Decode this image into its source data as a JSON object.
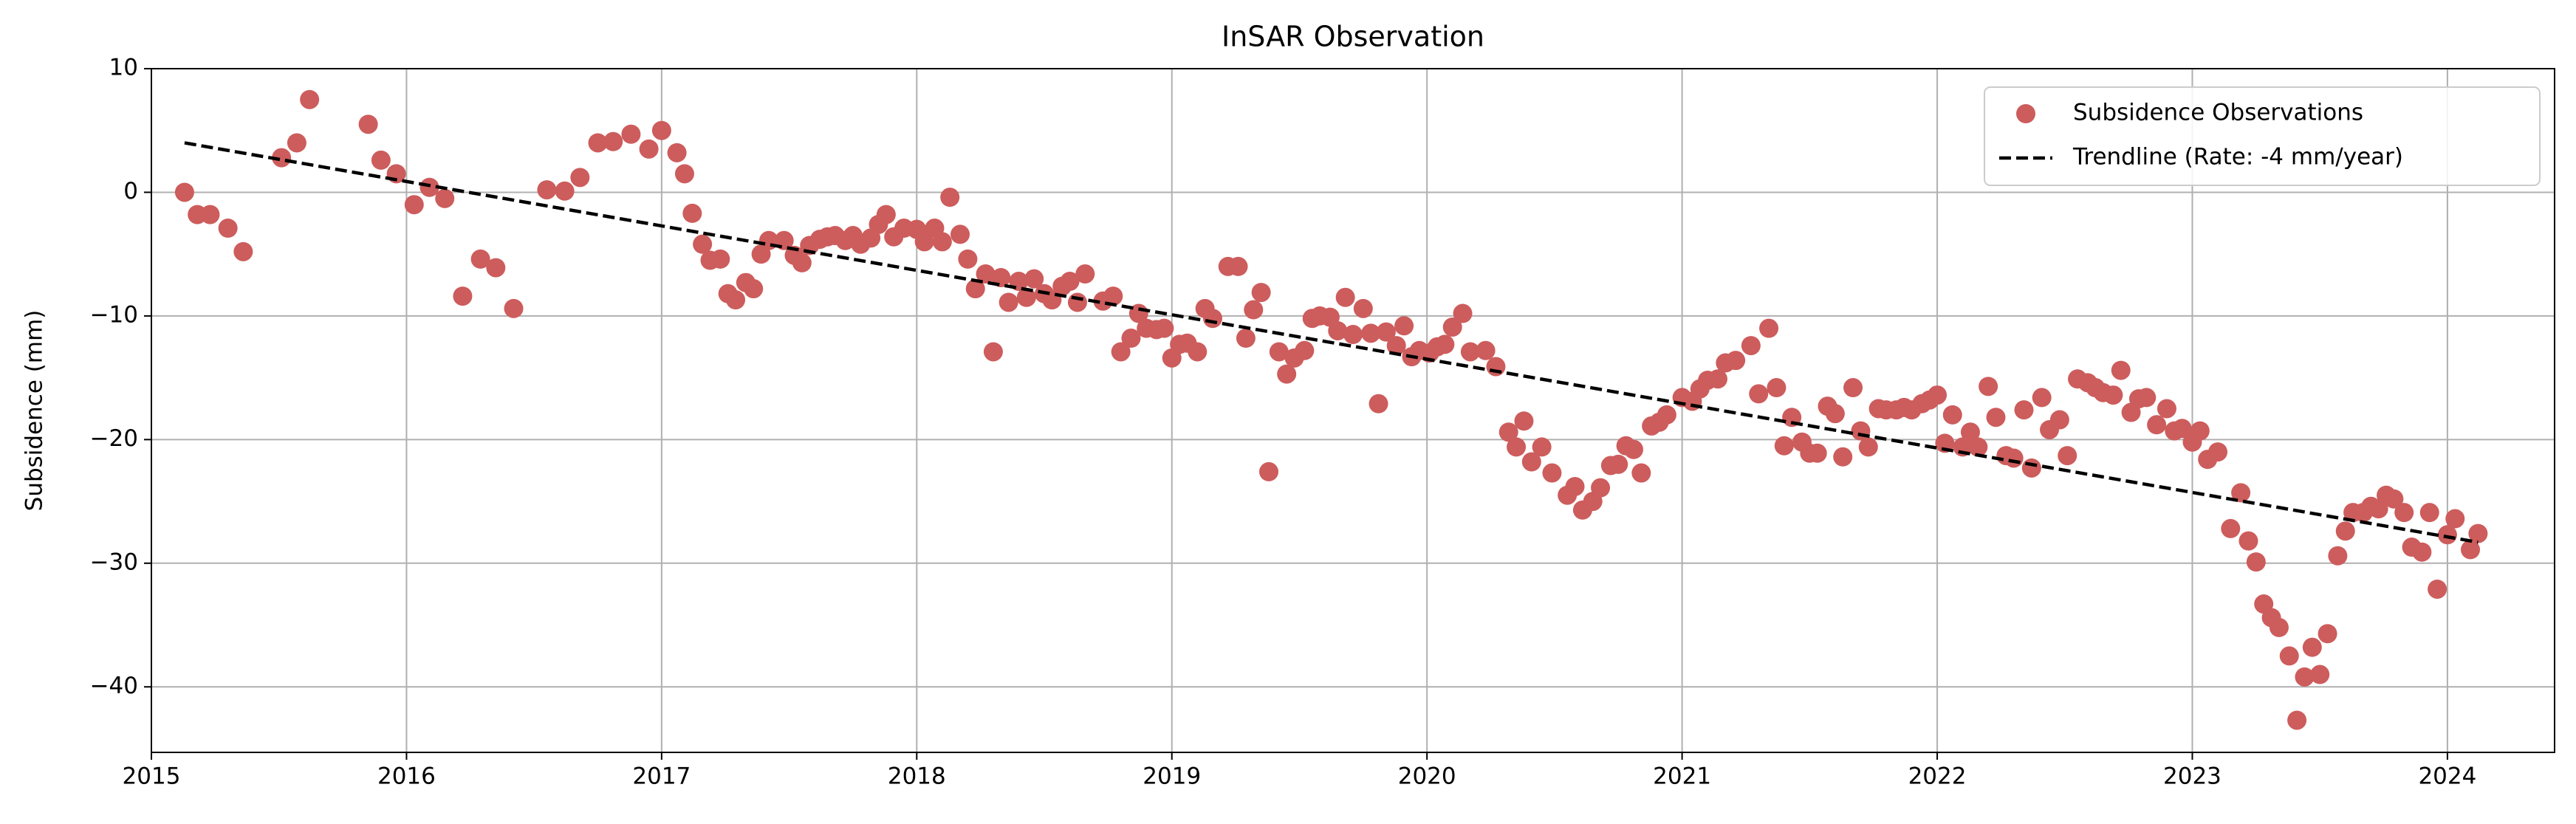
{
  "chart_data": {
    "type": "scatter",
    "title": "InSAR Observation",
    "ylabel": "Subsidence (mm)",
    "xlim": [
      2015,
      2024.42
    ],
    "ylim": [
      -45.3,
      10
    ],
    "xticks": [
      2015,
      2016,
      2017,
      2018,
      2019,
      2020,
      2021,
      2022,
      2023,
      2024
    ],
    "yticks": [
      {
        "value": -40,
        "label": "−40"
      },
      {
        "value": -30,
        "label": "−30"
      },
      {
        "value": -20,
        "label": "−20"
      },
      {
        "value": -10,
        "label": "−10"
      },
      0,
      10
    ],
    "grid": true,
    "legend": "upper right",
    "series": [
      {
        "name": "Subsidence Observations",
        "type": "scatter",
        "color": "#cd5c5c",
        "x": [
          2015.13,
          2015.18,
          2015.23,
          2015.3,
          2015.36,
          2015.51,
          2015.57,
          2015.62,
          2015.85,
          2015.9,
          2015.96,
          2016.03,
          2016.09,
          2016.15,
          2016.22,
          2016.29,
          2016.35,
          2016.42,
          2016.55,
          2016.62,
          2016.68,
          2016.75,
          2016.81,
          2016.88,
          2016.95,
          2017.0,
          2017.06,
          2017.09,
          2017.12,
          2017.16,
          2017.19,
          2017.23,
          2017.26,
          2017.29,
          2017.33,
          2017.36,
          2017.39,
          2017.42,
          2017.48,
          2017.52,
          2017.55,
          2017.58,
          2017.62,
          2017.65,
          2017.68,
          2017.72,
          2017.75,
          2017.78,
          2017.82,
          2017.85,
          2017.88,
          2017.91,
          2017.95,
          2018.0,
          2018.03,
          2018.07,
          2018.1,
          2018.13,
          2018.17,
          2018.2,
          2018.23,
          2018.27,
          2018.3,
          2018.33,
          2018.36,
          2018.4,
          2018.43,
          2018.46,
          2018.5,
          2018.53,
          2018.57,
          2018.6,
          2018.63,
          2018.66,
          2018.73,
          2018.77,
          2018.8,
          2018.84,
          2018.87,
          2018.9,
          2018.94,
          2018.97,
          2019.0,
          2019.03,
          2019.06,
          2019.1,
          2019.13,
          2019.16,
          2019.22,
          2019.26,
          2019.29,
          2019.32,
          2019.35,
          2019.38,
          2019.42,
          2019.45,
          2019.48,
          2019.52,
          2019.55,
          2019.58,
          2019.62,
          2019.65,
          2019.68,
          2019.71,
          2019.75,
          2019.78,
          2019.81,
          2019.84,
          2019.88,
          2019.91,
          2019.94,
          2019.97,
          2020.01,
          2020.04,
          2020.07,
          2020.1,
          2020.14,
          2020.17,
          2020.23,
          2020.27,
          2020.32,
          2020.35,
          2020.38,
          2020.41,
          2020.45,
          2020.49,
          2020.55,
          2020.58,
          2020.61,
          2020.65,
          2020.68,
          2020.72,
          2020.75,
          2020.78,
          2020.81,
          2020.84,
          2020.88,
          2020.91,
          2020.94,
          2021.0,
          2021.04,
          2021.07,
          2021.1,
          2021.14,
          2021.17,
          2021.21,
          2021.27,
          2021.3,
          2021.34,
          2021.37,
          2021.4,
          2021.43,
          2021.47,
          2021.5,
          2021.53,
          2021.57,
          2021.6,
          2021.63,
          2021.67,
          2021.7,
          2021.73,
          2021.77,
          2021.8,
          2021.84,
          2021.87,
          2021.9,
          2021.94,
          2021.97,
          2022.0,
          2022.03,
          2022.06,
          2022.1,
          2022.13,
          2022.16,
          2022.2,
          2022.23,
          2022.27,
          2022.3,
          2022.34,
          2022.37,
          2022.41,
          2022.44,
          2022.48,
          2022.51,
          2022.55,
          2022.59,
          2022.62,
          2022.65,
          2022.69,
          2022.72,
          2022.76,
          2022.79,
          2022.82,
          2022.86,
          2022.9,
          2022.93,
          2022.96,
          2023.0,
          2023.03,
          2023.06,
          2023.1,
          2023.15,
          2023.19,
          2023.22,
          2023.25,
          2023.28,
          2023.31,
          2023.34,
          2023.38,
          2023.41,
          2023.44,
          2023.47,
          2023.5,
          2023.53,
          2023.57,
          2023.6,
          2023.63,
          2023.67,
          2023.7,
          2023.73,
          2023.76,
          2023.79,
          2023.83,
          2023.86,
          2023.9,
          2023.93,
          2023.96,
          2024.0,
          2024.03,
          2024.09,
          2024.12
        ],
        "values": [
          0,
          -1.8,
          -1.8,
          -2.9,
          -4.8,
          2.8,
          4.0,
          7.5,
          5.5,
          2.6,
          1.5,
          -1.0,
          0.4,
          -0.5,
          -8.4,
          -5.4,
          -6.1,
          -9.4,
          0.2,
          0.1,
          1.2,
          4.0,
          4.1,
          4.7,
          3.5,
          5.0,
          3.2,
          1.5,
          -1.7,
          -4.2,
          -5.5,
          -5.4,
          -8.2,
          -8.7,
          -7.3,
          -7.8,
          -5.0,
          -3.9,
          -3.9,
          -5.1,
          -5.7,
          -4.3,
          -3.8,
          -3.6,
          -3.5,
          -3.9,
          -3.5,
          -4.2,
          -3.7,
          -2.6,
          -1.8,
          -3.6,
          -2.9,
          -3.0,
          -4.0,
          -2.9,
          -4.0,
          -0.4,
          -3.4,
          -5.4,
          -7.8,
          -6.6,
          -12.9,
          -6.9,
          -8.9,
          -7.2,
          -8.5,
          -7.0,
          -8.2,
          -8.7,
          -7.6,
          -7.2,
          -8.9,
          -6.6,
          -8.8,
          -8.4,
          -12.9,
          -11.8,
          -9.8,
          -11.0,
          -11.1,
          -11.0,
          -13.4,
          -12.3,
          -12.2,
          -12.9,
          -9.4,
          -10.2,
          -6.0,
          -6.0,
          -11.8,
          -9.5,
          -8.1,
          -22.6,
          -12.9,
          -14.7,
          -13.4,
          -12.8,
          -10.2,
          -10.0,
          -10.1,
          -11.2,
          -8.5,
          -11.5,
          -9.4,
          -11.4,
          -17.1,
          -11.3,
          -12.4,
          -10.8,
          -13.3,
          -12.8,
          -13.0,
          -12.5,
          -12.3,
          -10.9,
          -9.8,
          -12.9,
          -12.8,
          -14.1,
          -19.4,
          -20.6,
          -18.5,
          -21.8,
          -20.6,
          -22.7,
          -24.5,
          -23.8,
          -25.7,
          -25.0,
          -23.9,
          -22.1,
          -22.0,
          -20.5,
          -20.8,
          -22.7,
          -18.9,
          -18.6,
          -18.0,
          -16.6,
          -16.9,
          -15.9,
          -15.2,
          -15.1,
          -13.8,
          -13.6,
          -12.4,
          -16.3,
          -11.0,
          -15.8,
          -20.5,
          -18.2,
          -20.2,
          -21.1,
          -21.1,
          -17.3,
          -17.9,
          -21.4,
          -15.8,
          -19.3,
          -20.6,
          -17.5,
          -17.6,
          -17.6,
          -17.4,
          -17.6,
          -17.1,
          -16.8,
          -16.4,
          -20.3,
          -18.0,
          -20.6,
          -19.4,
          -20.6,
          -15.7,
          -18.2,
          -21.3,
          -21.5,
          -17.6,
          -22.3,
          -16.6,
          -19.2,
          -18.4,
          -21.3,
          -15.1,
          -15.4,
          -15.8,
          -16.2,
          -16.4,
          -14.4,
          -17.8,
          -16.7,
          -16.6,
          -18.8,
          -17.5,
          -19.3,
          -19.1,
          -20.2,
          -19.3,
          -21.6,
          -21.0,
          -27.2,
          -24.3,
          -28.2,
          -29.9,
          -33.3,
          -34.4,
          -35.2,
          -37.5,
          -42.7,
          -39.2,
          -36.8,
          -39.0,
          -35.7,
          -29.4,
          -27.4,
          -25.9,
          -25.9,
          -25.4,
          -25.6,
          -24.5,
          -24.8,
          -25.9,
          -28.7,
          -29.1,
          -25.9,
          -32.1,
          -27.7,
          -26.4,
          -28.9,
          -27.6
        ]
      },
      {
        "name": "Trendline (Rate: -4 mm/year)",
        "type": "line",
        "linestyle": "dashed",
        "color": "#000000",
        "x": [
          2015.13,
          2024.12
        ],
        "values": [
          4.0,
          -28.3
        ]
      }
    ]
  }
}
